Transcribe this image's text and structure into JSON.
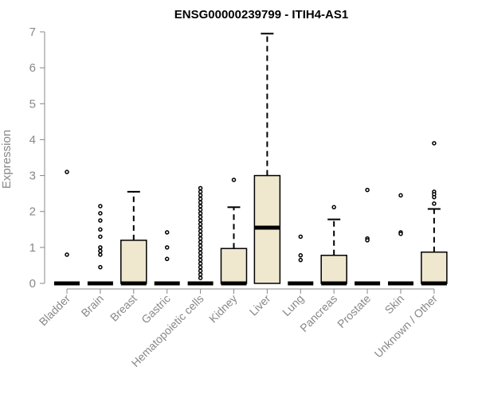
{
  "chart_data": {
    "type": "boxplot",
    "title": "ENSG00000239799 - ITIH4-AS1",
    "ylabel": "Expression",
    "xlabel": "",
    "ylim": [
      0,
      7
    ],
    "yticks": [
      0,
      1,
      2,
      3,
      4,
      5,
      6,
      7
    ],
    "grid": false,
    "legend": "none",
    "box_fill": "#efe8cf",
    "box_stroke": "#000000",
    "categories": [
      "Bladder",
      "Brain",
      "Breast",
      "Gastric",
      "Hematopoietic cells",
      "Kidney",
      "Liver",
      "Lung",
      "Pancreas",
      "Prostate",
      "Skin",
      "Unknown / Other"
    ],
    "boxes": [
      {
        "min": 0,
        "q1": 0,
        "median": 0,
        "q3": 0,
        "max": 0,
        "outliers": [
          3.1,
          0.8
        ]
      },
      {
        "min": 0,
        "q1": 0,
        "median": 0,
        "q3": 0,
        "max": 0,
        "outliers": [
          2.15,
          1.95,
          1.75,
          1.5,
          1.3,
          1.0,
          0.9,
          0.8,
          0.45
        ]
      },
      {
        "min": 0,
        "q1": 0,
        "median": 0,
        "q3": 1.2,
        "max": 2.55,
        "outliers": []
      },
      {
        "min": 0,
        "q1": 0,
        "median": 0,
        "q3": 0,
        "max": 0,
        "outliers": [
          1.42,
          1.0,
          0.68
        ]
      },
      {
        "min": 0,
        "q1": 0,
        "median": 0,
        "q3": 0,
        "max": 0,
        "outliers": [
          2.65,
          2.55,
          2.45,
          2.35,
          2.25,
          2.15,
          2.05,
          1.95,
          1.85,
          1.75,
          1.65,
          1.55,
          1.45,
          1.35,
          1.25,
          1.15,
          1.05,
          0.95,
          0.85,
          0.75,
          0.65,
          0.55,
          0.45,
          0.35,
          0.25,
          0.15
        ]
      },
      {
        "min": 0,
        "q1": 0,
        "median": 0,
        "q3": 0.97,
        "max": 2.12,
        "outliers": [
          2.88
        ]
      },
      {
        "min": 0,
        "q1": 0,
        "median": 1.55,
        "q3": 3.0,
        "max": 6.95,
        "outliers": []
      },
      {
        "min": 0,
        "q1": 0,
        "median": 0,
        "q3": 0,
        "max": 0,
        "outliers": [
          1.3,
          0.78,
          0.65
        ]
      },
      {
        "min": 0,
        "q1": 0,
        "median": 0,
        "q3": 0.78,
        "max": 1.78,
        "outliers": [
          2.12
        ]
      },
      {
        "min": 0,
        "q1": 0,
        "median": 0,
        "q3": 0,
        "max": 0,
        "outliers": [
          2.6,
          1.25,
          1.2
        ]
      },
      {
        "min": 0,
        "q1": 0,
        "median": 0,
        "q3": 0,
        "max": 0,
        "outliers": [
          2.45,
          1.42,
          1.38
        ]
      },
      {
        "min": 0,
        "q1": 0,
        "median": 0,
        "q3": 0.87,
        "max": 2.07,
        "outliers": [
          3.9,
          2.55,
          2.48,
          2.4,
          2.22
        ]
      }
    ]
  }
}
